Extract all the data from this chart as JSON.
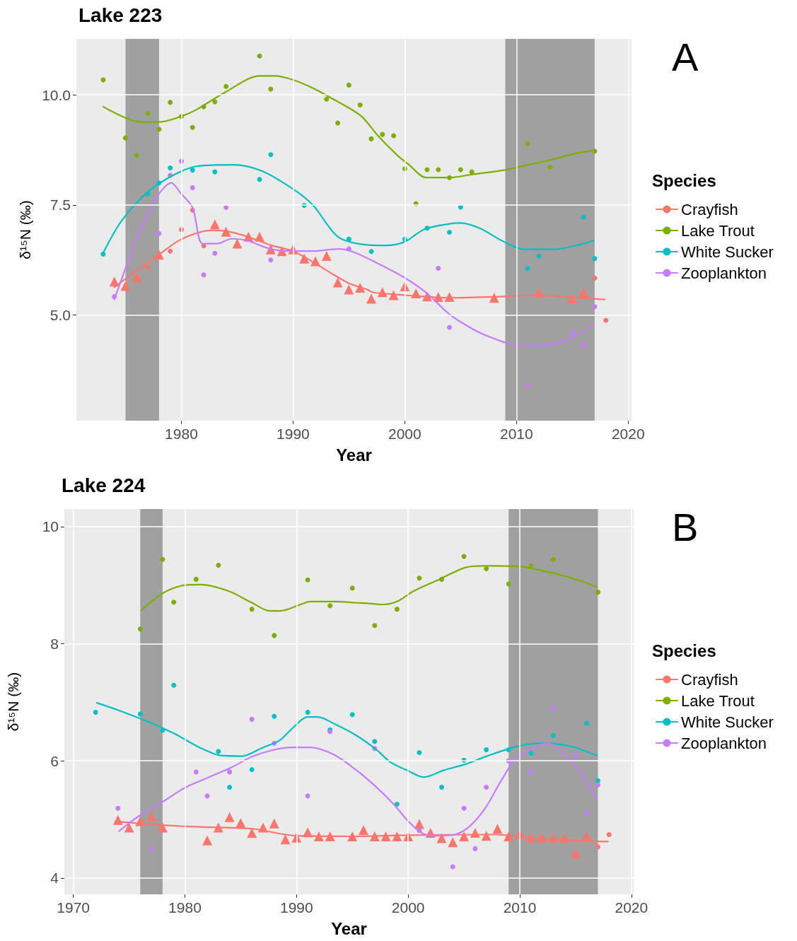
{
  "chart_data": [
    {
      "type": "scatter",
      "title": "Lake 223",
      "xlabel": "Year",
      "ylabel": "δ¹⁵N (‰)",
      "legend_title": "Species",
      "annotations": [
        "A"
      ],
      "xlim": [
        1970.6,
        2020.3
      ],
      "xticks": [
        1980,
        1990,
        2000,
        2010,
        2020
      ],
      "ylim": [
        2.6,
        11.27
      ],
      "yticks": [
        {
          "value": 5,
          "label": "5.0"
        },
        {
          "value": 7.5,
          "label": "7.5"
        },
        {
          "value": 10,
          "label": "10.0"
        }
      ],
      "grid": true,
      "legend": "right",
      "bands": [
        {
          "axis": "x",
          "from": 1975,
          "to": 1978,
          "color": "#a0a0a0"
        },
        {
          "axis": "x",
          "from": 2009,
          "to": 2017,
          "color": "#a0a0a0"
        }
      ],
      "series": [
        {
          "name": "Crayfish",
          "type": "line",
          "color": "#f8766d",
          "marker": "none",
          "x": [
            1974,
            1976.1,
            1978,
            1980,
            1982.7,
            1984.1,
            1985.9,
            1988.1,
            1990,
            1991.8,
            1993.6,
            1995,
            1996.6,
            1997.2,
            2000,
            2004,
            2008.9,
            2012,
            2013.9,
            2017.9
          ],
          "values": [
            5.63,
            6.03,
            6.37,
            6.72,
            6.92,
            6.9,
            6.78,
            6.58,
            6.45,
            6.2,
            5.92,
            5.72,
            5.58,
            5.51,
            5.45,
            5.39,
            5.42,
            5.45,
            5.42,
            5.35
          ]
        },
        {
          "name": "Lake Trout",
          "type": "line",
          "color": "#7cae00",
          "marker": "none",
          "x": [
            1973,
            1976.4,
            1978,
            1980,
            1981.4,
            1984,
            1987,
            1988.4,
            1990,
            1991.8,
            1993.6,
            1995.4,
            1996.3,
            1997.6,
            1999.4,
            2000.3,
            2001.9,
            2004,
            2006,
            2008.9,
            2010.7,
            2013,
            2015.7,
            2016.9
          ],
          "values": [
            9.73,
            9.38,
            9.38,
            9.51,
            9.67,
            10.07,
            10.43,
            10.43,
            10.34,
            10.15,
            9.9,
            9.64,
            9.47,
            9.07,
            8.61,
            8.43,
            8.12,
            8.12,
            8.19,
            8.29,
            8.39,
            8.52,
            8.69,
            8.73
          ]
        },
        {
          "name": "White Sucker",
          "type": "line",
          "color": "#00bfc4",
          "marker": "none",
          "x": [
            1973,
            1974.6,
            1976.8,
            1979.1,
            1981.4,
            1984.7,
            1987.2,
            1990,
            1991.8,
            1994,
            1996.3,
            1998.3,
            2000,
            2001.7,
            2004,
            2005,
            2006.7,
            2008.9,
            2010.7,
            2013.4,
            2015.7,
            2016.9
          ],
          "values": [
            6.41,
            7.12,
            7.75,
            8.15,
            8.38,
            8.41,
            8.27,
            7.86,
            7.49,
            6.78,
            6.6,
            6.58,
            6.66,
            6.94,
            7.07,
            7.09,
            6.97,
            6.66,
            6.49,
            6.49,
            6.6,
            6.69
          ]
        },
        {
          "name": "Zooplankton",
          "type": "line",
          "color": "#c77cff",
          "marker": "none",
          "x": [
            1974,
            1975.9,
            1977.7,
            1979.1,
            1979.9,
            1981,
            1981.9,
            1983.2,
            1984.5,
            1985.9,
            1987.7,
            1989.5,
            1991.8,
            1994,
            1995.4,
            1997.6,
            1999.9,
            2001.9,
            2003.7,
            2004.4,
            2006.6,
            2008.9,
            2010,
            2012.3,
            2014.6,
            2016.9
          ],
          "values": [
            5.35,
            6.66,
            7.64,
            8.0,
            7.78,
            7.44,
            6.62,
            6.62,
            6.73,
            6.69,
            6.52,
            6.45,
            6.45,
            6.5,
            6.43,
            6.17,
            5.86,
            5.51,
            5.08,
            4.94,
            4.61,
            4.38,
            4.31,
            4.31,
            4.44,
            4.77
          ]
        },
        {
          "type": "scatter",
          "color": "#f8766d",
          "marker": "triangle",
          "x": [
            1974,
            1975,
            1976,
            1978,
            1983,
            1984,
            1985,
            1986,
            1987,
            1988,
            1989,
            1990,
            1991,
            1992,
            1993,
            1994,
            1995,
            1996,
            1997,
            1998,
            1999,
            2000,
            2001,
            2002,
            2003,
            2004,
            2008,
            2012,
            2015,
            2016
          ],
          "values": [
            5.76,
            5.66,
            5.85,
            6.37,
            7.06,
            6.89,
            6.62,
            6.78,
            6.78,
            6.49,
            6.45,
            6.49,
            6.28,
            6.22,
            6.34,
            5.74,
            5.58,
            5.62,
            5.37,
            5.52,
            5.45,
            5.65,
            5.49,
            5.42,
            5.41,
            5.41,
            5.39,
            5.51,
            5.37,
            5.51
          ]
        },
        {
          "type": "scatter",
          "color": "#f8766d",
          "marker": "circle",
          "x": [
            1977,
            1979,
            1980,
            1981,
            1982,
            2017,
            2018
          ],
          "values": [
            6.08,
            6.45,
            6.94,
            7.38,
            6.57,
            5.84,
            4.88
          ]
        },
        {
          "type": "scatter",
          "color": "#7cae00",
          "marker": "circle",
          "x": [
            1973,
            1975,
            1976,
            1977,
            1978,
            1979,
            1980,
            1981,
            1982,
            1983,
            1984,
            1987,
            1988,
            1993,
            1994,
            1995,
            1996,
            1997,
            1998,
            1999,
            2000,
            2001,
            2002,
            2003,
            2004,
            2005,
            2006,
            2011,
            2013,
            2017
          ],
          "values": [
            10.34,
            9.02,
            8.62,
            9.58,
            9.22,
            9.83,
            9.51,
            9.26,
            9.73,
            9.84,
            10.19,
            10.88,
            10.13,
            9.9,
            9.36,
            10.22,
            9.77,
            9.0,
            9.1,
            9.07,
            8.32,
            7.53,
            8.3,
            8.3,
            8.12,
            8.3,
            8.25,
            8.89,
            8.36,
            8.72
          ]
        },
        {
          "type": "scatter",
          "color": "#00bfc4",
          "marker": "circle",
          "x": [
            1973,
            1977,
            1978,
            1979,
            1981,
            1983,
            1987,
            1988,
            1991,
            1995,
            1997,
            2000,
            2002,
            2004,
            2005,
            2011,
            2012,
            2016,
            2017
          ],
          "values": [
            6.38,
            7.75,
            8.0,
            8.34,
            8.29,
            8.25,
            8.08,
            8.64,
            7.49,
            6.72,
            6.44,
            6.72,
            6.97,
            6.88,
            7.45,
            6.06,
            6.34,
            7.22,
            6.28
          ]
        },
        {
          "type": "scatter",
          "color": "#c77cff",
          "marker": "circle",
          "x": [
            1974,
            1978,
            1979,
            1980,
            1981,
            1982,
            1983,
            1984,
            1988,
            1995,
            2003,
            2004,
            2011,
            2015,
            2016,
            2017
          ],
          "values": [
            5.42,
            6.85,
            8.17,
            8.49,
            7.89,
            5.91,
            6.4,
            7.44,
            6.25,
            6.5,
            6.06,
            4.72,
            3.41,
            4.61,
            4.31,
            5.19
          ]
        }
      ]
    },
    {
      "type": "scatter",
      "title": "Lake 224",
      "xlabel": "Year",
      "ylabel": "δ¹⁵N (‰)",
      "legend_title": "Species",
      "annotations": [
        "B"
      ],
      "xlim": [
        1969.2,
        2020.2
      ],
      "xticks": [
        1970,
        1980,
        1990,
        2000,
        2010,
        2020
      ],
      "ylim": [
        3.72,
        10.3
      ],
      "yticks": [
        4,
        6,
        8,
        10
      ],
      "grid": true,
      "legend": "right",
      "bands": [
        {
          "axis": "x",
          "from": 1976,
          "to": 1978,
          "color": "#a0a0a0"
        },
        {
          "axis": "x",
          "from": 2009,
          "to": 2017,
          "color": "#a0a0a0"
        }
      ],
      "series": [
        {
          "name": "Crayfish",
          "type": "line",
          "color": "#f8766d",
          "marker": "none",
          "x": [
            1974.1,
            1980,
            1986,
            1990,
            1995.3,
            2000,
            2007.8,
            2012.4,
            2017.9
          ],
          "values": [
            4.96,
            4.88,
            4.84,
            4.72,
            4.71,
            4.73,
            4.74,
            4.66,
            4.62
          ]
        },
        {
          "name": "Lake Trout",
          "type": "line",
          "color": "#7cae00",
          "marker": "none",
          "x": [
            1976.1,
            1978,
            1980,
            1981.4,
            1983.9,
            1986,
            1987.6,
            1988.5,
            1990.5,
            1991.2,
            1993.5,
            1995.3,
            1996.4,
            1997.8,
            1999,
            2000.5,
            2002.8,
            2005.1,
            2006.9,
            2009.9,
            2012.4,
            2014.7,
            2016.9
          ],
          "values": [
            8.57,
            8.86,
            9.0,
            9.01,
            8.9,
            8.7,
            8.56,
            8.56,
            8.68,
            8.72,
            8.72,
            8.7,
            8.69,
            8.67,
            8.72,
            8.9,
            9.1,
            9.3,
            9.33,
            9.32,
            9.23,
            9.12,
            8.97
          ]
        },
        {
          "name": "White Sucker",
          "type": "line",
          "color": "#00bfc4",
          "marker": "none",
          "x": [
            1972.1,
            1974.1,
            1976.8,
            1979.1,
            1981.4,
            1983.2,
            1985.1,
            1986.9,
            1988.5,
            1989.6,
            1991,
            1991.9,
            1993.5,
            1995.3,
            1997.1,
            1998.4,
            2000,
            2001.4,
            2003.2,
            2005.1,
            2006.9,
            2008.9,
            2011,
            2012.4,
            2014.7,
            2016.9
          ],
          "values": [
            6.99,
            6.86,
            6.66,
            6.46,
            6.22,
            6.09,
            6.08,
            6.22,
            6.35,
            6.55,
            6.75,
            6.75,
            6.62,
            6.44,
            6.2,
            5.98,
            5.83,
            5.72,
            5.84,
            5.94,
            6.07,
            6.2,
            6.29,
            6.3,
            6.24,
            6.09
          ]
        },
        {
          "name": "Zooplankton",
          "type": "line",
          "color": "#c77cff",
          "marker": "none",
          "x": [
            1974.1,
            1975.9,
            1978,
            1980,
            1981.9,
            1984.2,
            1986,
            1987.8,
            1989.6,
            1991.2,
            1993.3,
            1995.3,
            1997.1,
            1998.7,
            2000,
            2001.4,
            2002.8,
            2004.2,
            2005.5,
            2006.9,
            2008.3,
            2009.6,
            2011,
            2012.4,
            2013.5,
            2015.1,
            2016.9
          ],
          "values": [
            4.8,
            5.06,
            5.3,
            5.54,
            5.7,
            5.89,
            6.07,
            6.18,
            6.23,
            6.23,
            6.11,
            5.85,
            5.56,
            5.26,
            4.97,
            4.75,
            4.72,
            4.74,
            4.88,
            5.19,
            5.65,
            6.03,
            6.2,
            6.3,
            6.2,
            5.89,
            5.34
          ]
        },
        {
          "type": "scatter",
          "color": "#f8766d",
          "marker": "triangle",
          "x": [
            1974,
            1975,
            1976,
            1977,
            1978,
            1982,
            1983,
            1984,
            1985,
            1986,
            1987,
            1988,
            1989,
            1990,
            1991,
            1992,
            1993,
            1995,
            1996,
            1997,
            1998,
            1999,
            2000,
            2001,
            2002,
            2003,
            2004,
            2005,
            2006,
            2007,
            2008,
            2009,
            2010,
            2011,
            2012,
            2013,
            2014,
            2015,
            2016
          ],
          "values": [
            4.99,
            4.86,
            4.97,
            5.05,
            4.86,
            4.64,
            4.86,
            5.04,
            4.94,
            4.77,
            4.86,
            4.93,
            4.66,
            4.69,
            4.78,
            4.71,
            4.71,
            4.71,
            4.82,
            4.71,
            4.71,
            4.71,
            4.71,
            4.92,
            4.77,
            4.68,
            4.61,
            4.71,
            4.77,
            4.72,
            4.84,
            4.71,
            4.75,
            4.69,
            4.69,
            4.69,
            4.69,
            4.42,
            4.71
          ]
        },
        {
          "type": "scatter",
          "color": "#f8766d",
          "marker": "circle",
          "x": [
            2017,
            2018
          ],
          "values": [
            4.53,
            4.74
          ]
        },
        {
          "type": "scatter",
          "color": "#7cae00",
          "marker": "circle",
          "x": [
            1976,
            1978,
            1979,
            1981,
            1983,
            1986,
            1988,
            1991,
            1993,
            1995,
            1997,
            1999,
            2001,
            2003,
            2005,
            2007,
            2009,
            2011,
            2013,
            2017
          ],
          "values": [
            8.25,
            9.44,
            8.71,
            9.1,
            9.34,
            8.59,
            8.14,
            9.09,
            8.65,
            8.95,
            8.31,
            8.59,
            9.12,
            9.1,
            9.49,
            9.28,
            9.02,
            9.33,
            9.44,
            8.88
          ]
        },
        {
          "type": "scatter",
          "color": "#00bfc4",
          "marker": "circle",
          "x": [
            1972,
            1976,
            1978,
            1979,
            1983,
            1984,
            1986,
            1988,
            1991,
            1993,
            1995,
            1997,
            1999,
            2001,
            2003,
            2005,
            2007,
            2009,
            2011,
            2013,
            2016,
            2017
          ],
          "values": [
            6.83,
            6.8,
            6.52,
            7.29,
            6.16,
            5.55,
            5.85,
            6.76,
            6.83,
            6.53,
            6.79,
            6.33,
            5.26,
            6.14,
            5.55,
            6.01,
            6.19,
            6.19,
            6.13,
            6.43,
            6.64,
            5.66
          ]
        },
        {
          "type": "scatter",
          "color": "#c77cff",
          "marker": "circle",
          "x": [
            1974,
            1977,
            1981,
            1982,
            1984,
            1986,
            1988,
            1991,
            1993,
            1997,
            2001,
            2004,
            2005,
            2006,
            2007,
            2009,
            2011,
            2013,
            2015,
            2016,
            2017
          ],
          "values": [
            5.19,
            4.5,
            5.81,
            5.4,
            5.81,
            6.71,
            6.3,
            5.4,
            6.5,
            6.21,
            4.81,
            4.19,
            5.19,
            4.5,
            5.55,
            6.0,
            5.81,
            6.9,
            6.09,
            5.1,
            5.59
          ]
        }
      ]
    }
  ]
}
